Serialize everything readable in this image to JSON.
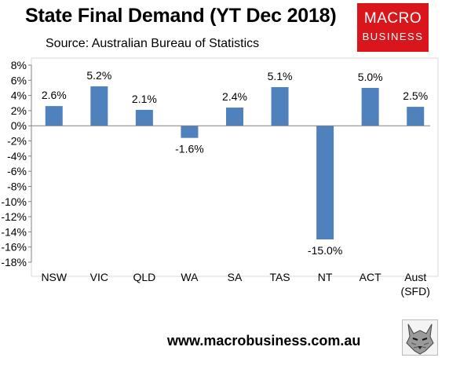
{
  "header": {
    "title": "State Final Demand (YT Dec 2018)",
    "source": "Source: Australian Bureau of Statistics"
  },
  "logo": {
    "line1": "MACRO",
    "line2": "BUSINESS"
  },
  "footer": {
    "website": "www.macrobusiness.com.au",
    "emblem_icon": "wolf-icon"
  },
  "chart_data": {
    "type": "bar",
    "categories": [
      "NSW",
      "VIC",
      "QLD",
      "WA",
      "SA",
      "TAS",
      "NT",
      "ACT",
      "Aust\n(SFD)"
    ],
    "values": [
      2.6,
      5.2,
      2.1,
      -1.6,
      2.4,
      5.1,
      -15.0,
      5.0,
      2.5
    ],
    "data_labels": [
      "2.6%",
      "5.2%",
      "2.1%",
      "-1.6%",
      "2.4%",
      "5.1%",
      "-15.0%",
      "5.0%",
      "2.5%"
    ],
    "yticks": [
      "8%",
      "6%",
      "4%",
      "2%",
      "0%",
      "-2%",
      "-4%",
      "-6%",
      "-8%",
      "-10%",
      "-12%",
      "-14%",
      "-16%",
      "-18%"
    ],
    "ylim": [
      -18,
      8
    ],
    "title": "State Final Demand (YT Dec 2018)",
    "xlabel": "",
    "ylabel": "",
    "grid": false,
    "bar_color": "#4f81bd"
  }
}
